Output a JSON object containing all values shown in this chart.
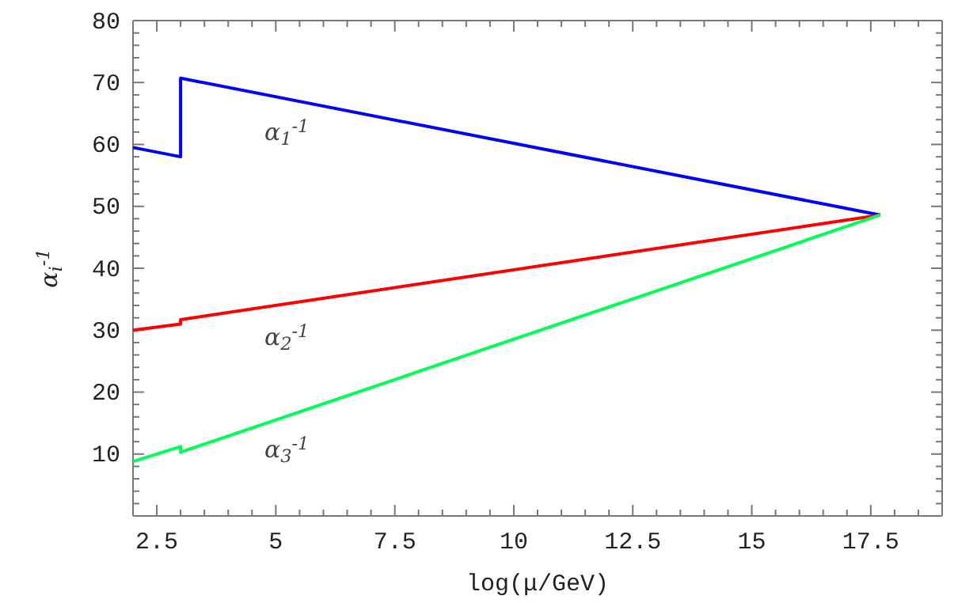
{
  "chart_data": {
    "type": "line",
    "xlabel": "log(μ/GeV)",
    "ylabel": "α$_{i}$$^{-1}$",
    "xlim": [
      2,
      19
    ],
    "ylim": [
      0,
      80
    ],
    "xticks": [
      {
        "value": 2,
        "label": null
      },
      2.5,
      {
        "value": 3,
        "label": null
      },
      {
        "value": 3.5,
        "label": null
      },
      {
        "value": 4,
        "label": null
      },
      {
        "value": 4.5,
        "label": null
      },
      5,
      {
        "value": 5.5,
        "label": null
      },
      {
        "value": 6,
        "label": null
      },
      {
        "value": 6.5,
        "label": null
      },
      {
        "value": 7,
        "label": null
      },
      7.5,
      {
        "value": 8,
        "label": null
      },
      {
        "value": 8.5,
        "label": null
      },
      {
        "value": 9,
        "label": null
      },
      {
        "value": 9.5,
        "label": null
      },
      10,
      {
        "value": 10.5,
        "label": null
      },
      {
        "value": 11,
        "label": null
      },
      {
        "value": 11.5,
        "label": null
      },
      {
        "value": 12,
        "label": null
      },
      12.5,
      {
        "value": 13,
        "label": null
      },
      {
        "value": 13.5,
        "label": null
      },
      {
        "value": 14,
        "label": null
      },
      {
        "value": 14.5,
        "label": null
      },
      15,
      {
        "value": 15.5,
        "label": null
      },
      {
        "value": 16,
        "label": null
      },
      {
        "value": 16.5,
        "label": null
      },
      {
        "value": 17,
        "label": null
      },
      17.5,
      {
        "value": 18,
        "label": null
      },
      {
        "value": 18.5,
        "label": null
      },
      {
        "value": 19,
        "label": null
      }
    ],
    "yticks": [
      {
        "value": 2,
        "label": null
      },
      {
        "value": 4,
        "label": null
      },
      {
        "value": 6,
        "label": null
      },
      {
        "value": 8,
        "label": null
      },
      10,
      {
        "value": 12,
        "label": null
      },
      {
        "value": 14,
        "label": null
      },
      {
        "value": 16,
        "label": null
      },
      {
        "value": 18,
        "label": null
      },
      20,
      {
        "value": 22,
        "label": null
      },
      {
        "value": 24,
        "label": null
      },
      {
        "value": 26,
        "label": null
      },
      {
        "value": 28,
        "label": null
      },
      30,
      {
        "value": 32,
        "label": null
      },
      {
        "value": 34,
        "label": null
      },
      {
        "value": 36,
        "label": null
      },
      {
        "value": 38,
        "label": null
      },
      40,
      {
        "value": 42,
        "label": null
      },
      {
        "value": 44,
        "label": null
      },
      {
        "value": 46,
        "label": null
      },
      {
        "value": 48,
        "label": null
      },
      50,
      {
        "value": 52,
        "label": null
      },
      {
        "value": 54,
        "label": null
      },
      {
        "value": 56,
        "label": null
      },
      {
        "value": 58,
        "label": null
      },
      60,
      {
        "value": 62,
        "label": null
      },
      {
        "value": 64,
        "label": null
      },
      {
        "value": 66,
        "label": null
      },
      {
        "value": 68,
        "label": null
      },
      70,
      {
        "value": 72,
        "label": null
      },
      {
        "value": 74,
        "label": null
      },
      {
        "value": 76,
        "label": null
      },
      {
        "value": 78,
        "label": null
      },
      80
    ],
    "grid": false,
    "marker": "none",
    "line_style": "solid",
    "series": [
      {
        "name": "α$_{1}$$^{-1}$",
        "color": "#0000ff",
        "x": [
          2,
          3,
          3,
          17.7
        ],
        "values": [
          59.5,
          58,
          70.7,
          48.6
        ]
      },
      {
        "name": "α$_{2}$$^{-1}$",
        "color": "#ff0000",
        "x": [
          2,
          3,
          3,
          17.7
        ],
        "values": [
          30,
          31,
          31.7,
          48.6
        ]
      },
      {
        "name": "α$_{3}$$^{-1}$",
        "color": "#00ff55",
        "x": [
          2,
          3,
          3,
          17.7
        ],
        "values": [
          8.8,
          11.2,
          10.3,
          48.6
        ]
      }
    ]
  }
}
